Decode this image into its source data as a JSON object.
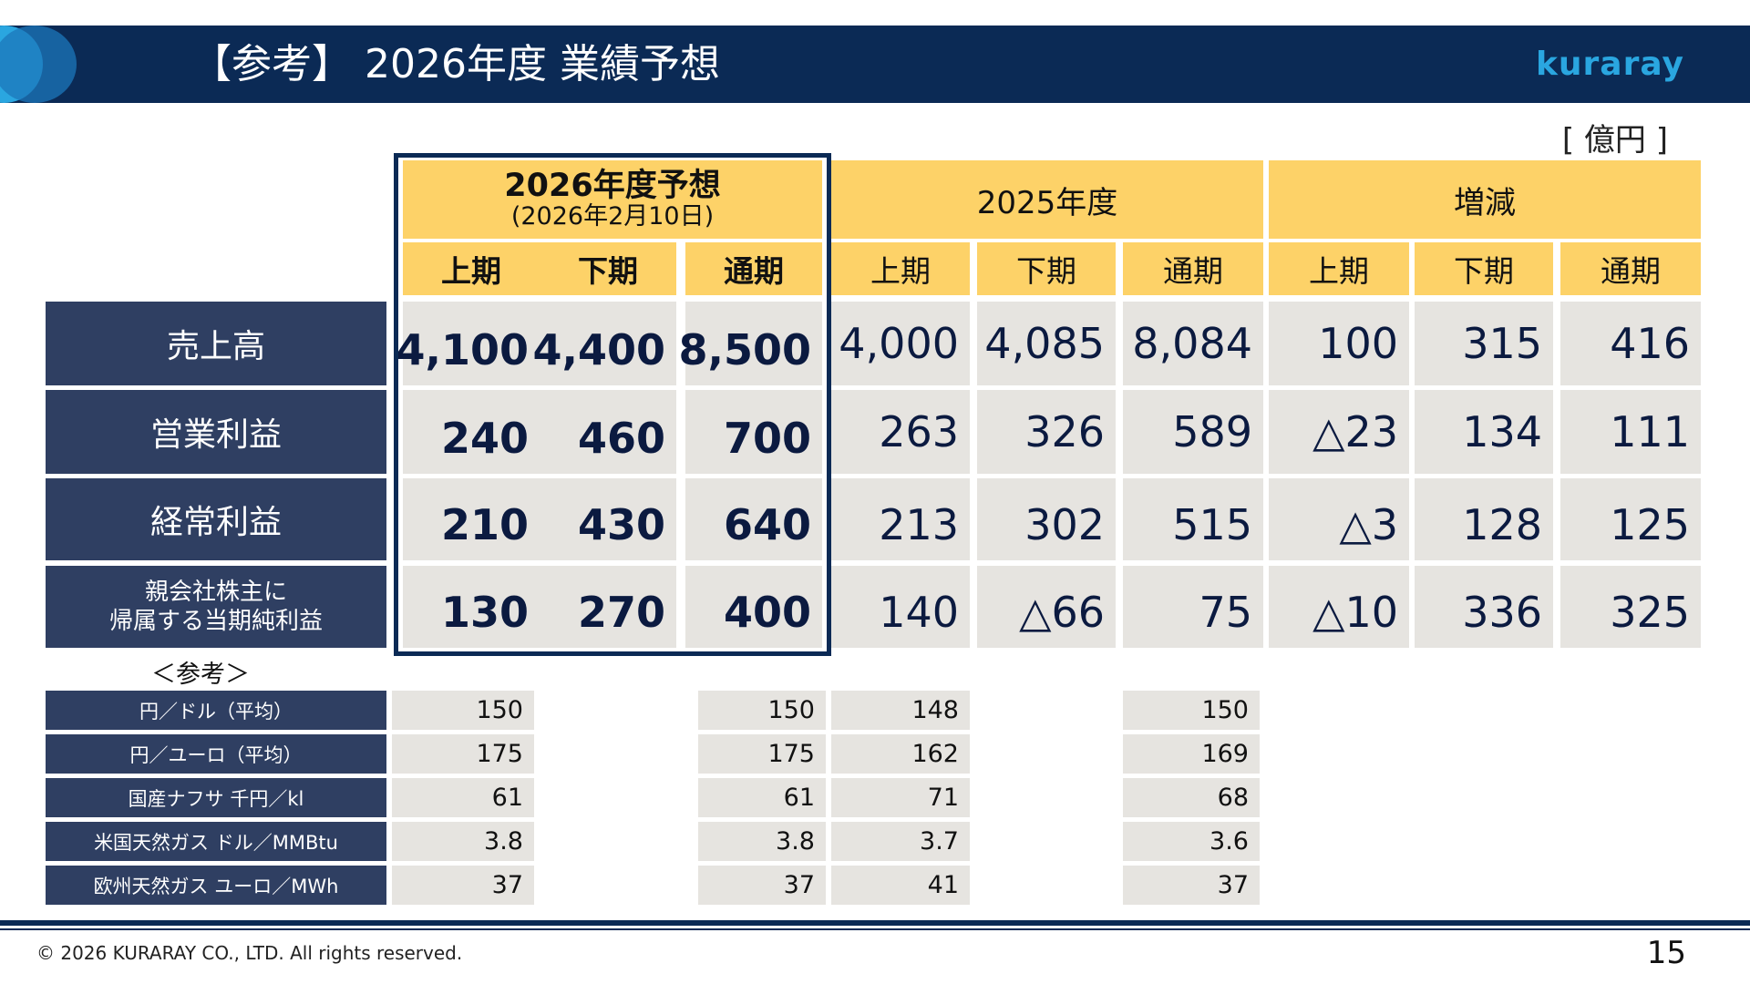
{
  "header": {
    "title": "【参考】 2026年度 業績予想",
    "logo": "kuraray"
  },
  "unit": "[ 億円 ]",
  "table": {
    "groups": [
      {
        "label": "2026年度予想",
        "sublabel": "(2026年2月10日)"
      },
      {
        "label": "2025年度"
      },
      {
        "label": "増減"
      }
    ],
    "subheaders": [
      "上期",
      "下期",
      "通期",
      "上期",
      "下期",
      "通期",
      "上期",
      "下期",
      "通期"
    ],
    "rows": [
      {
        "label": "売上高",
        "values": [
          "4,100",
          "4,400",
          "8,500",
          "4,000",
          "4,085",
          "8,084",
          "100",
          "315",
          "416"
        ]
      },
      {
        "label": "営業利益",
        "values": [
          "240",
          "460",
          "700",
          "263",
          "326",
          "589",
          "△23",
          "134",
          "111"
        ]
      },
      {
        "label": "経常利益",
        "values": [
          "210",
          "430",
          "640",
          "213",
          "302",
          "515",
          "△3",
          "128",
          "125"
        ]
      },
      {
        "label_line1": "親会社株主に",
        "label_line2": "帰属する当期純利益",
        "values": [
          "130",
          "270",
          "400",
          "140",
          "△66",
          "75",
          "△10",
          "336",
          "325"
        ]
      }
    ]
  },
  "reference": {
    "title": "＜参考＞",
    "rows": [
      {
        "label": "円／ドル（平均）",
        "values": [
          "150",
          "150",
          "148",
          "150"
        ]
      },
      {
        "label": "円／ユーロ（平均）",
        "values": [
          "175",
          "175",
          "162",
          "169"
        ]
      },
      {
        "label": "国産ナフサ 千円／kl",
        "values": [
          "61",
          "61",
          "71",
          "68"
        ]
      },
      {
        "label": "米国天然ガス ドル／MMBtu",
        "values": [
          "3.8",
          "3.8",
          "3.7",
          "3.6"
        ]
      },
      {
        "label": "欧州天然ガス ユーロ／MWh",
        "values": [
          "37",
          "37",
          "41",
          "37"
        ]
      }
    ]
  },
  "footer": {
    "copyright": "© 2026 KURARAY CO., LTD. All rights reserved.",
    "page": "15"
  }
}
